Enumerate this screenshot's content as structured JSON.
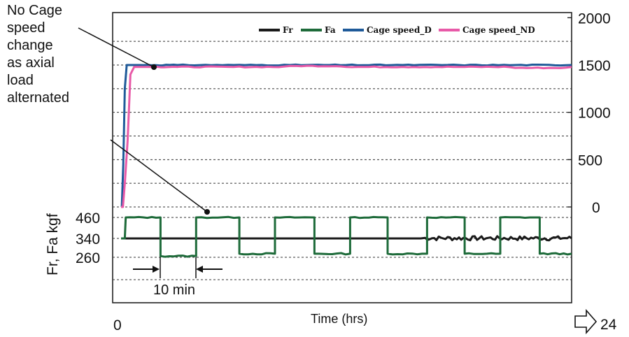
{
  "chart_data": {
    "type": "line",
    "title": "",
    "xlabel": "Time (hrs)",
    "x_start_label": "0",
    "x_end_label": "24",
    "x_end_arrow_icon": "right-arrow-outline-icon",
    "right_axis": {
      "ticks": [
        2000,
        1500,
        1000,
        500,
        0
      ],
      "ylim": [
        -500,
        2000
      ]
    },
    "left_axis": {
      "label": "Fr, Fa kgf",
      "ticks": [
        460,
        340,
        260
      ]
    },
    "grid": "horizontal dashed",
    "legend": {
      "placement": "top-right",
      "entries": [
        {
          "name": "Fr",
          "color": "#1a1a1a"
        },
        {
          "name": "Fa",
          "color": "#1e6b3a"
        },
        {
          "name": "Cage speed_D",
          "color": "#1f5a99"
        },
        {
          "name": "Cage speed_ND",
          "color": "#e85aa8"
        }
      ]
    },
    "series": [
      {
        "name": "Cage speed_D",
        "axis": "right",
        "x": [
          0,
          0.04,
          0.12,
          0.2,
          0.3,
          0.45,
          1,
          3,
          6,
          9,
          12,
          15,
          18,
          21,
          24
        ],
        "values": [
          0,
          0,
          450,
          1250,
          1500,
          1500,
          1500,
          1500,
          1500,
          1500,
          1500,
          1500,
          1500,
          1500,
          1500
        ]
      },
      {
        "name": "Cage speed_ND",
        "axis": "right",
        "x": [
          0,
          0.1,
          0.2,
          0.35,
          0.5,
          0.7,
          1.2,
          3,
          6,
          9,
          12,
          15,
          18,
          21,
          24
        ],
        "values": [
          0,
          0,
          250,
          700,
          1400,
          1480,
          1480,
          1480,
          1480,
          1490,
          1480,
          1480,
          1480,
          1470,
          1480
        ]
      },
      {
        "name": "Fr",
        "axis": "left",
        "x": [
          0,
          16,
          24
        ],
        "values": [
          340,
          340,
          345
        ],
        "note_visible": "steady line that becomes slightly noisy in the last third"
      },
      {
        "name": "Fa",
        "axis": "left",
        "pattern": "square wave",
        "x": [
          0,
          0.2,
          0.25,
          2.1,
          2.1,
          4.0,
          4.0,
          6.3,
          6.3,
          8.2,
          8.2,
          10.3,
          10.3,
          12.2,
          12.2,
          14.2,
          14.2,
          16.3,
          16.3,
          18.3,
          18.3,
          20.2,
          20.2,
          22.3,
          22.3,
          24
        ],
        "values": [
          340,
          340,
          460,
          460,
          265,
          265,
          460,
          460,
          275,
          275,
          460,
          460,
          275,
          275,
          460,
          460,
          275,
          275,
          460,
          460,
          275,
          275,
          460,
          460,
          275,
          275
        ]
      }
    ],
    "annotations": [
      {
        "text": [
          "No Cage",
          "speed",
          "change",
          "as axial",
          "load",
          "alternated"
        ]
      },
      {
        "text": [
          "10 min"
        ]
      }
    ]
  }
}
